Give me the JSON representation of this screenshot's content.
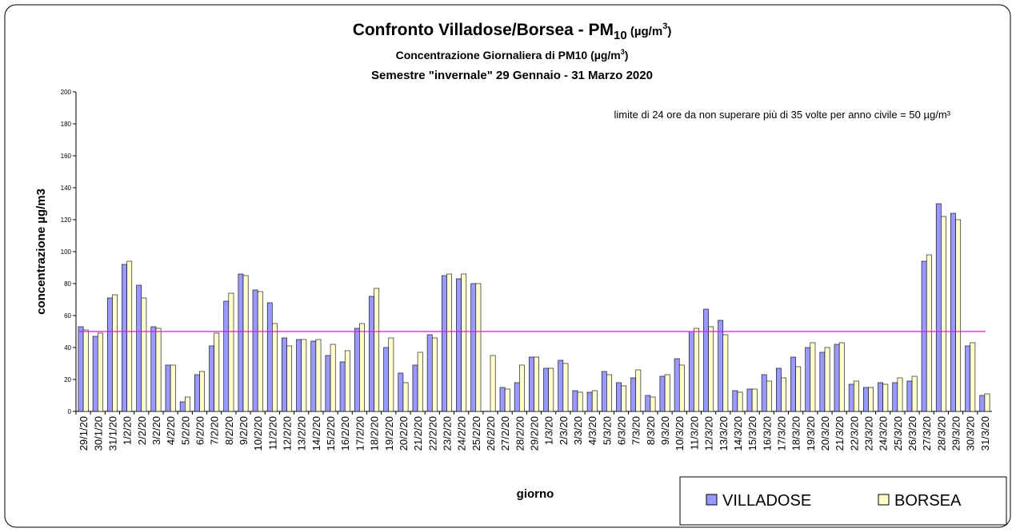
{
  "chart_data": {
    "type": "bar",
    "title": [
      "Confronto Villadose/Borsea - PM",
      "10",
      " (µg/m",
      "3",
      ")"
    ],
    "subtitle": [
      "Concentrazione Giornaliera di PM10 (µg/m",
      "3",
      ")"
    ],
    "subtitle2": "Semestre \"invernale\" 29 Gennaio - 31 Marzo 2020",
    "annotation": "limite di 24 ore da non superare più di 35 volte per anno civile = 50 µg/m³",
    "reference_line": {
      "value": 50,
      "color": "#ff00ff"
    },
    "x_label": "giorno",
    "y_label": "concentrazione µg/m3",
    "categories": [
      "29/1/20",
      "30/1/20",
      "31/1/20",
      "1/2/20",
      "2/2/20",
      "3/2/20",
      "4/2/20",
      "5/2/20",
      "6/2/20",
      "7/2/20",
      "8/2/20",
      "9/2/20",
      "10/2/20",
      "11/2/20",
      "12/2/20",
      "13/2/20",
      "14/2/20",
      "15/2/20",
      "16/2/20",
      "17/2/20",
      "18/2/20",
      "19/2/20",
      "20/2/20",
      "21/2/20",
      "22/2/20",
      "23/2/20",
      "24/2/20",
      "25/2/20",
      "26/2/20",
      "27/2/20",
      "28/2/20",
      "29/2/20",
      "1/3/20",
      "2/3/20",
      "3/3/20",
      "4/3/20",
      "5/3/20",
      "6/3/20",
      "7/3/20",
      "8/3/20",
      "9/3/20",
      "10/3/20",
      "11/3/20",
      "12/3/20",
      "13/3/20",
      "14/3/20",
      "15/3/20",
      "16/3/20",
      "17/3/20",
      "18/3/20",
      "19/3/20",
      "20/3/20",
      "21/3/20",
      "22/3/20",
      "23/3/20",
      "24/3/20",
      "25/3/20",
      "26/3/20",
      "27/3/20",
      "28/3/20",
      "29/3/20",
      "30/3/20",
      "31/3/20"
    ],
    "series": [
      {
        "name": "VILLADOSE",
        "color": "#9999ff",
        "values": [
          53,
          47,
          71,
          92,
          79,
          53,
          29,
          6,
          23,
          41,
          69,
          86,
          76,
          68,
          46,
          45,
          44,
          35,
          31,
          52,
          72,
          40,
          24,
          29,
          48,
          85,
          83,
          80,
          null,
          15,
          18,
          34,
          27,
          32,
          13,
          12,
          25,
          18,
          21,
          10,
          22,
          33,
          50,
          64,
          57,
          13,
          14,
          23,
          27,
          34,
          40,
          37,
          42,
          17,
          15,
          18,
          18,
          19,
          94,
          130,
          124,
          41,
          10
        ]
      },
      {
        "name": "BORSEA",
        "color": "#ffffcc",
        "values": [
          51,
          49,
          73,
          94,
          71,
          52,
          29,
          9,
          25,
          49,
          74,
          85,
          75,
          55,
          41,
          45,
          45,
          42,
          38,
          55,
          77,
          46,
          18,
          37,
          46,
          86,
          86,
          80,
          35,
          14,
          29,
          34,
          27,
          30,
          12,
          13,
          23,
          16,
          26,
          9,
          23,
          29,
          52,
          53,
          48,
          12,
          14,
          19,
          21,
          28,
          43,
          40,
          43,
          19,
          15,
          17,
          21,
          22,
          98,
          122,
          120,
          43,
          11
        ]
      }
    ],
    "ylim": [
      0,
      200
    ],
    "yticks": [
      0,
      20,
      40,
      60,
      80,
      100,
      120,
      140,
      160,
      180,
      200
    ],
    "legend": "bottom-right"
  }
}
